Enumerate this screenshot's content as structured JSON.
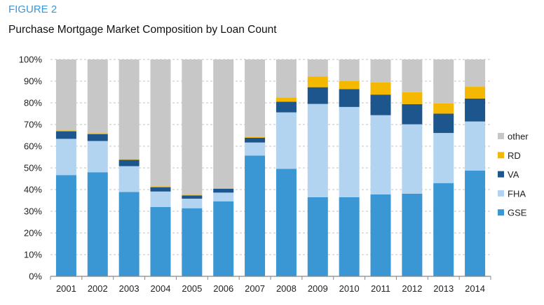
{
  "figure_label": "FIGURE 2",
  "chart_data": {
    "type": "bar",
    "stacked": true,
    "title": "Purchase Mortgage Market Composition by Loan Count",
    "xlabel": "",
    "ylabel": "",
    "ylim": [
      0,
      100
    ],
    "yticks": [
      "0%",
      "10%",
      "20%",
      "30%",
      "40%",
      "50%",
      "60%",
      "70%",
      "80%",
      "90%",
      "100%"
    ],
    "grid": true,
    "legend_position": "right",
    "categories": [
      "2001",
      "2002",
      "2003",
      "2004",
      "2005",
      "2006",
      "2007",
      "2008",
      "2009",
      "2010",
      "2011",
      "2012",
      "2013",
      "2014"
    ],
    "series": [
      {
        "name": "GSE",
        "color": "#3a97d4",
        "values": [
          46.7,
          48.0,
          38.9,
          32.0,
          31.4,
          34.6,
          55.7,
          49.6,
          36.5,
          36.5,
          37.8,
          38.1,
          43.0,
          48.8
        ]
      },
      {
        "name": "FHA",
        "color": "#b3d4f0",
        "values": [
          16.7,
          14.4,
          11.9,
          7.1,
          4.4,
          4.0,
          6.0,
          26.0,
          43.0,
          41.6,
          36.5,
          32.0,
          23.1,
          22.6
        ]
      },
      {
        "name": "VA",
        "color": "#1c568c",
        "values": [
          3.5,
          3.2,
          2.9,
          2.0,
          1.5,
          1.8,
          2.2,
          4.9,
          7.7,
          8.2,
          9.5,
          9.3,
          8.9,
          10.6
        ]
      },
      {
        "name": "RD",
        "color": "#f5b800",
        "values": [
          0.4,
          0.4,
          0.4,
          0.4,
          0.3,
          0.3,
          0.4,
          1.9,
          5.0,
          3.8,
          5.6,
          5.5,
          4.7,
          5.4
        ]
      },
      {
        "name": "other",
        "color": "#c7c7c7",
        "values": [
          32.7,
          34.0,
          45.9,
          58.5,
          62.4,
          59.3,
          35.7,
          17.6,
          7.8,
          9.9,
          10.6,
          15.1,
          20.3,
          12.6
        ]
      }
    ]
  }
}
